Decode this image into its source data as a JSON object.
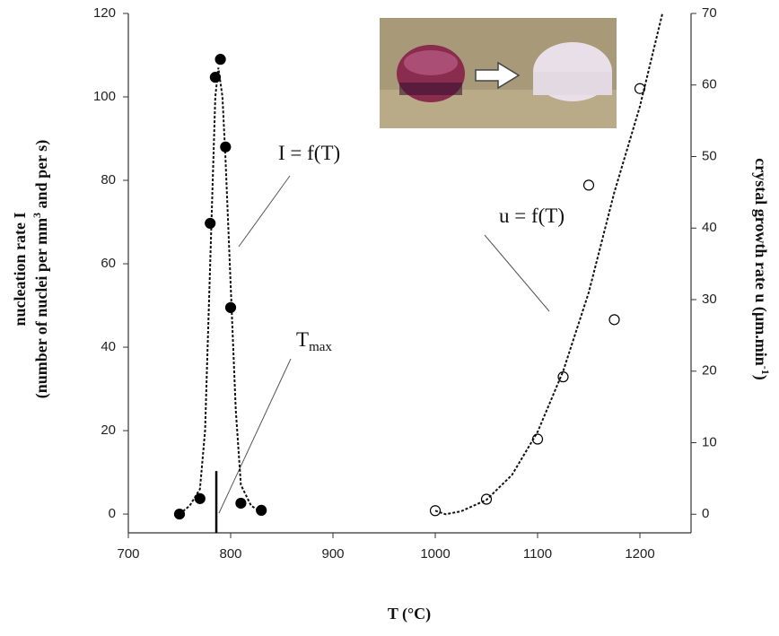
{
  "chart_data": {
    "type": "scatter",
    "x_label": "T (°C)",
    "y_label": [
      "nucleation rate I",
      [
        "(number of nuclei per mm",
        "3",
        " and per s)"
      ]
    ],
    "y2_label": [
      "crystal growth rate  u (µm.min",
      "-1",
      ")"
    ],
    "xlim": [
      700,
      1250
    ],
    "xticks": [
      700,
      800,
      900,
      1000,
      1100,
      1200
    ],
    "ylim": [
      -4.5,
      120
    ],
    "yticks": [
      0,
      20,
      40,
      60,
      80,
      100,
      120
    ],
    "y2lim": [
      -2.6,
      70
    ],
    "y2ticks": [
      0,
      10,
      20,
      30,
      40,
      50,
      60,
      70
    ],
    "series": [
      {
        "x": [
          750,
          770,
          780,
          785,
          790,
          795,
          800,
          810,
          830
        ],
        "values": [
          0,
          3.7,
          69.7,
          104.7,
          109,
          88,
          49.5,
          2.6,
          0.9
        ],
        "color": "#000",
        "marker_fill": "#000",
        "axis": "y"
      },
      {
        "x": [
          1000,
          1050,
          1100,
          1125,
          1150,
          1175,
          1200
        ],
        "values": [
          0.5,
          2.1,
          10.5,
          19.2,
          46,
          27.2,
          59.5
        ],
        "color": "#000",
        "marker_fill": "none",
        "axis": "y2"
      }
    ],
    "fit_lines": [
      {
        "x": [
          750,
          760,
          770,
          775,
          780,
          785,
          788,
          792,
          795,
          800,
          805,
          810,
          820,
          830
        ],
        "values": [
          0,
          2,
          6,
          20,
          60,
          100,
          107,
          100,
          85,
          55,
          25,
          7,
          2,
          0.5
        ],
        "axis": "y",
        "color": "#111"
      },
      {
        "x": [
          1000,
          1010,
          1025,
          1050,
          1075,
          1100,
          1125,
          1150,
          1175,
          1200,
          1222
        ],
        "values": [
          0.5,
          0,
          0.4,
          2,
          5.5,
          11.5,
          20,
          31,
          45,
          57,
          70
        ],
        "axis": "y2",
        "color": "#111"
      }
    ],
    "annotations": [
      {
        "text": "I = f(T)"
      },
      {
        "text": "u = f(T)"
      },
      {
        "text": "T",
        "subscript": "max",
        "line_x": 786,
        "line_top": 10.3
      }
    ]
  }
}
